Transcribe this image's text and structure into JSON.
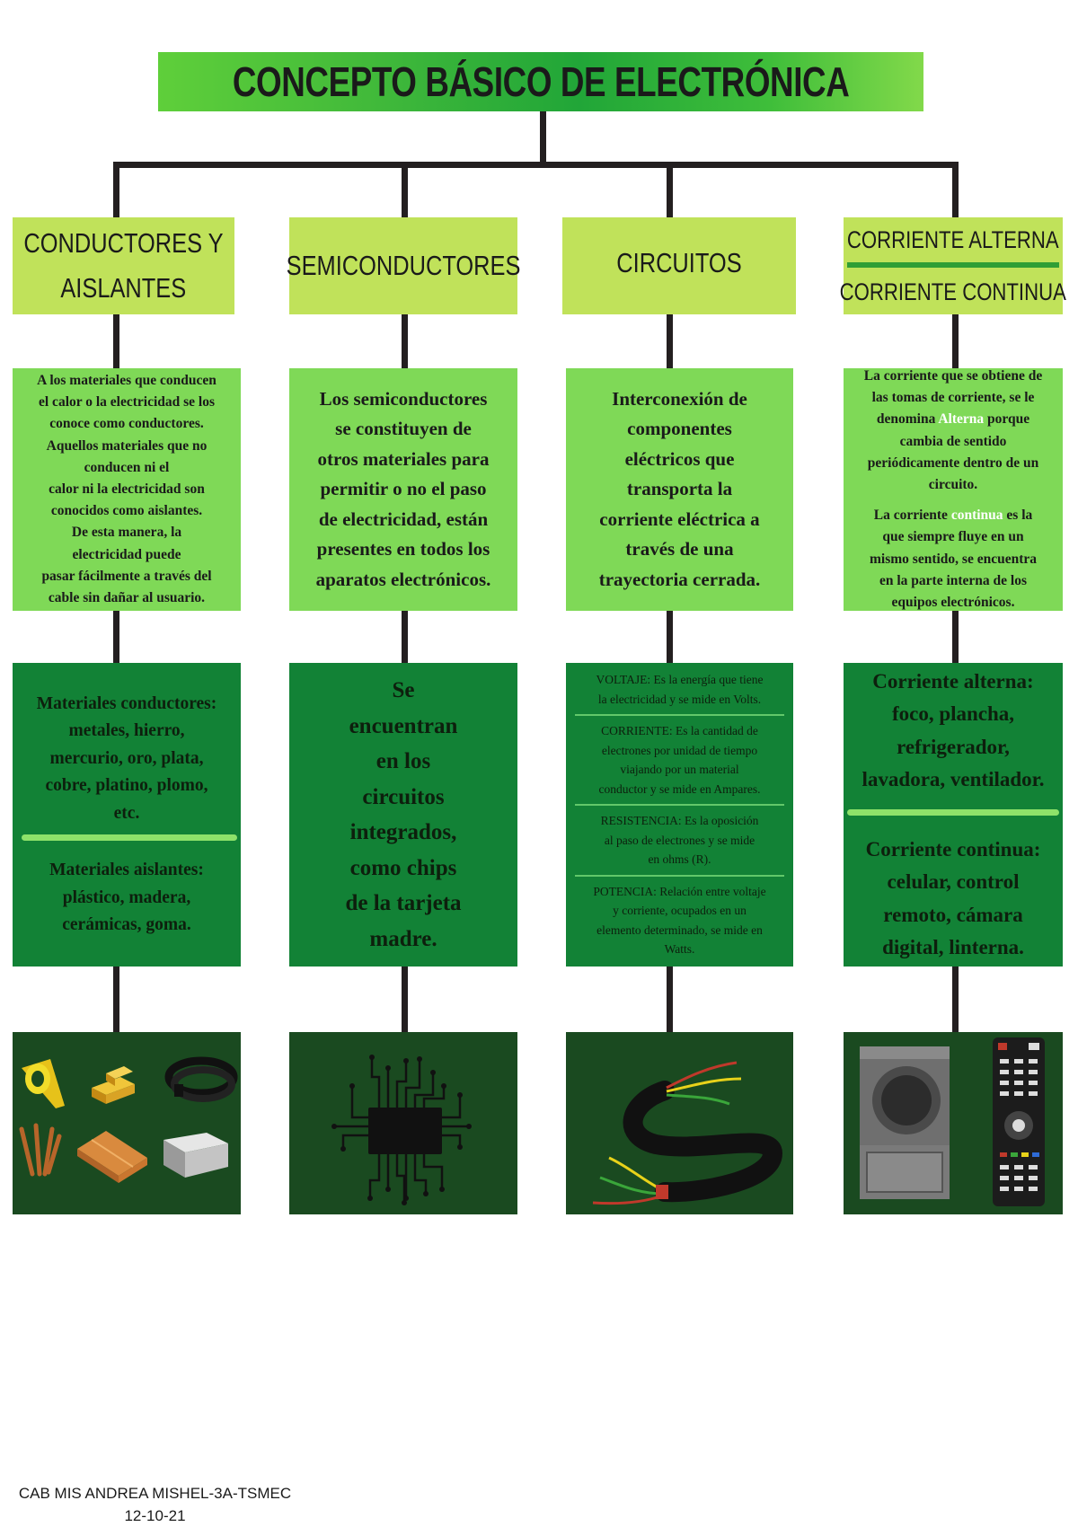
{
  "title": "CONCEPTO BÁSICO DE ELECTRÓNICA",
  "columns": [
    {
      "header_lines": [
        "CONDUCTORES Y",
        "AISLANTES"
      ],
      "description_lines": [
        "A los materiales que conducen",
        "el calor o la electricidad se los",
        "conoce como conductores.",
        "Aquellos materiales que no",
        "conducen ni el",
        "calor ni la electricidad son",
        "conocidos como aislantes.",
        "De esta manera, la",
        "electricidad puede",
        "pasar fácilmente a través del",
        "cable sin dañar al usuario."
      ],
      "examples": {
        "conductores_lines": [
          "Materiales conductores:",
          "metales, hierro,",
          "mercurio, oro, plata,",
          "cobre, platino, plomo,",
          "etc."
        ],
        "aislantes_lines": [
          "Materiales aislantes:",
          "plástico, madera,",
          "cerámicas, goma."
        ]
      },
      "icons": [
        "tape-icon",
        "gold-bars-icon",
        "rubber-hose-icon",
        "copper-nails-icon",
        "copper-wood-icon",
        "silver-ingot-icon"
      ]
    },
    {
      "header_lines": [
        "SEMICONDUCTORES"
      ],
      "description_lines": [
        "Los semiconductores",
        "se constituyen de",
        "otros materiales para",
        "permitir o no el paso",
        "de electricidad, están",
        "presentes en todos los",
        "aparatos electrónicos."
      ],
      "example_lines": [
        "Se",
        "encuentran",
        "en los",
        "circuitos",
        "integrados,",
        "como chips",
        "de la tarjeta",
        "madre."
      ],
      "icons": [
        "microchip-icon"
      ]
    },
    {
      "header_lines": [
        "CIRCUITOS"
      ],
      "description_lines": [
        "Interconexión de",
        "componentes",
        "eléctricos que",
        "transporta la",
        "corriente eléctrica a",
        "través de una",
        "trayectoria cerrada."
      ],
      "definitions": [
        [
          "VOLTAJE: Es la energía que tiene",
          "la electricidad y se mide en Volts."
        ],
        [
          "CORRIENTE: Es la cantidad de",
          "electrones por unidad de tiempo",
          "viajando por un material",
          "conductor y se mide en Ampares."
        ],
        [
          "RESISTENCIA: Es la oposición",
          "al paso de electrones y se mide",
          "en ohms (R)."
        ],
        [
          "POTENCIA: Relación entre voltaje",
          "y corriente, ocupados en un",
          "elemento determinado, se mide en",
          "Watts."
        ]
      ],
      "icons": [
        "cable-wires-icon"
      ]
    },
    {
      "header_lines": [
        "CORRIENTE  ALTERNA",
        "CORRIENTE CONTINUA"
      ],
      "alterna_desc": {
        "l1": "La corriente que se obtiene de",
        "l2": "las tomas de corriente, se le",
        "l3_a": "denomina ",
        "l3_hl": "Alterna",
        "l3_b": " porque",
        "l4": "cambia de sentido",
        "l5": "periódicamente dentro de un",
        "l6": "circuito."
      },
      "continua_desc": {
        "l1_a": "La corriente ",
        "l1_hl": "continua",
        "l1_b": " es la",
        "l2": "que siempre fluye en un",
        "l3": "mismo sentido, se encuentra",
        "l4": "en la parte interna de los",
        "l5": "equipos electrónicos."
      },
      "alterna_examples_lines": [
        "Corriente alterna:",
        "foco, plancha,",
        "refrigerador,",
        "lavadora, ventilador."
      ],
      "continua_examples_lines": [
        "Corriente continua:",
        "celular, control",
        "remoto, cámara",
        "digital, linterna."
      ],
      "icons": [
        "washing-machine-icon",
        "remote-control-icon"
      ]
    }
  ],
  "footer": {
    "line1": "CAB MIS ANDREA MISHEL-3A-TSMEC",
    "line2": "12-10-21"
  },
  "colors": {
    "header_bg": "#c0e25a",
    "description_bg": "#7fd957",
    "examples_bg": "#128236",
    "picture_bg": "#1a4a20",
    "connector": "#231f20"
  }
}
